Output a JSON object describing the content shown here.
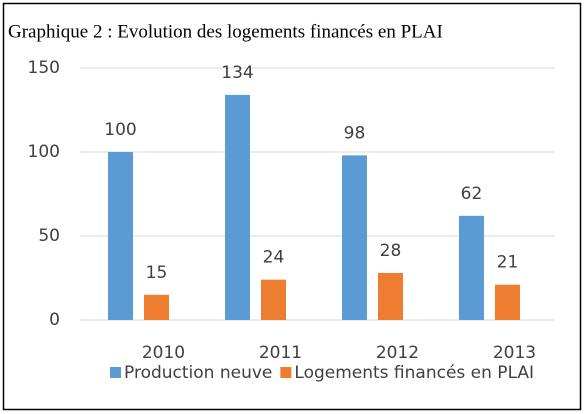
{
  "chart_data": {
    "type": "bar",
    "title": "Graphique 2 : Evolution des logements financés en PLAI",
    "categories": [
      "2010",
      "2011",
      "2012",
      "2013"
    ],
    "series": [
      {
        "name": "Production neuve",
        "color": "#5b9bd5",
        "values": [
          100,
          134,
          98,
          62
        ]
      },
      {
        "name": "Logements financés en PLAI",
        "color": "#ed7d31",
        "values": [
          15,
          24,
          28,
          21
        ]
      }
    ],
    "ylim": [
      0,
      150
    ],
    "yticks": [
      0,
      50,
      100,
      150
    ],
    "grid": true,
    "legend": "bottom",
    "data_labels": true
  }
}
